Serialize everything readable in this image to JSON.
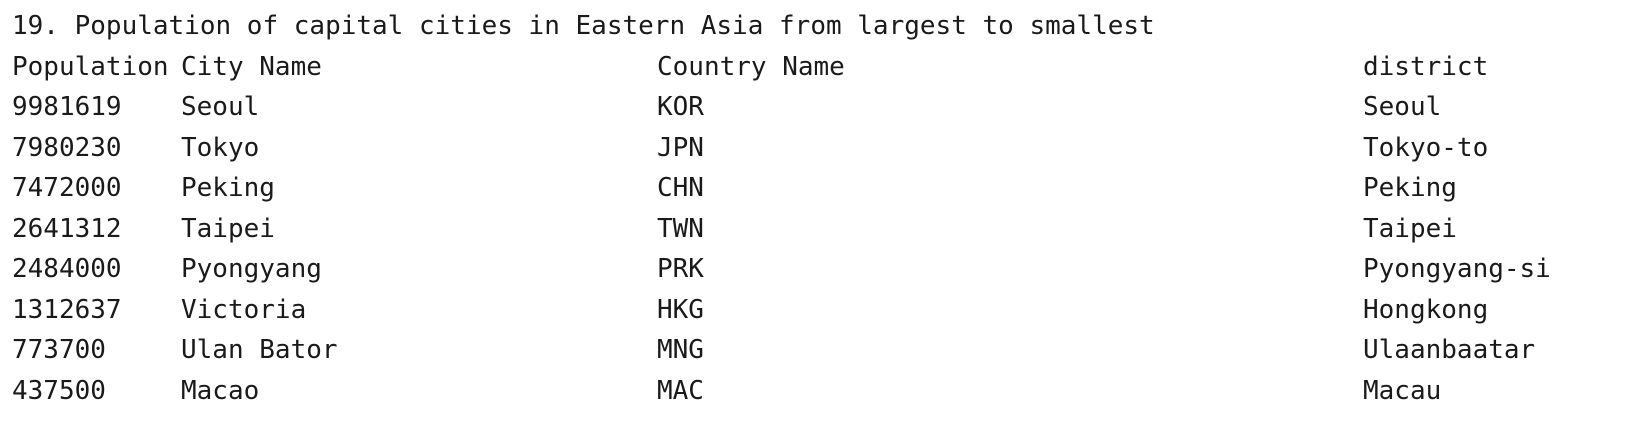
{
  "title": "19. Population of capital cities in Eastern Asia from largest to smallest",
  "table": {
    "headers": [
      "Population",
      "City Name",
      "Country Name",
      "district"
    ],
    "rows": [
      [
        "9981619",
        "Seoul",
        "KOR",
        "Seoul"
      ],
      [
        "7980230",
        "Tokyo",
        "JPN",
        "Tokyo-to"
      ],
      [
        "7472000",
        "Peking",
        "CHN",
        "Peking"
      ],
      [
        "2641312",
        "Taipei",
        "TWN",
        "Taipei"
      ],
      [
        "2484000",
        "Pyongyang",
        "PRK",
        "Pyongyang-si"
      ],
      [
        "1312637",
        "Victoria",
        "HKG",
        "Hongkong"
      ],
      [
        "773700",
        "Ulan Bator",
        "MNG",
        "Ulaanbaatar"
      ],
      [
        "437500",
        "Macao",
        "MAC",
        "Macau"
      ]
    ]
  }
}
